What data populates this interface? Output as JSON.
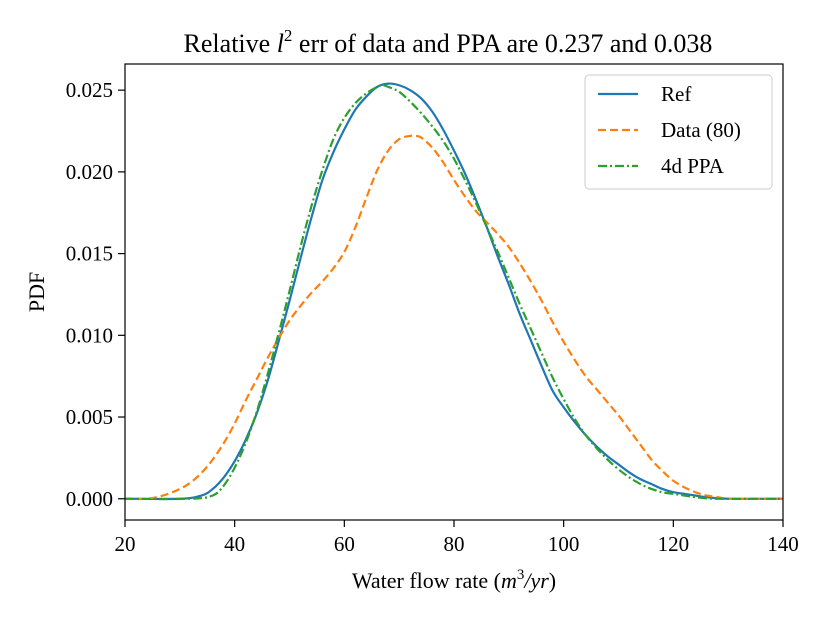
{
  "chart_data": {
    "type": "line",
    "title_prefix": "Relative ",
    "title_symbol": "l",
    "title_superscript": "2",
    "title_suffix": " err of data and PPA are 0.237 and 0.038",
    "xlabel_prefix": "Water flow rate (",
    "xlabel_m": "m",
    "xlabel_sup": "3",
    "xlabel_rest": "/yr",
    "xlabel_suffix": ")",
    "ylabel": "PDF",
    "xlim": [
      20,
      140
    ],
    "ylim": [
      -0.0013,
      0.0266
    ],
    "xticks": [
      20,
      40,
      60,
      80,
      100,
      120,
      140
    ],
    "xtick_labels": [
      "20",
      "40",
      "60",
      "80",
      "100",
      "120",
      "140"
    ],
    "yticks": [
      0.0,
      0.005,
      0.01,
      0.015,
      0.02,
      0.025
    ],
    "ytick_labels": [
      "0.000",
      "0.005",
      "0.010",
      "0.015",
      "0.020",
      "0.025"
    ],
    "legend_position": "top-right",
    "series": [
      {
        "name": "Ref",
        "color": "#1f77b4",
        "dash": "solid",
        "x": [
          20,
          30,
          34,
          36,
          38,
          40,
          42,
          44,
          46,
          48,
          50,
          52,
          54,
          56,
          58,
          60,
          62,
          64,
          66,
          68,
          70,
          72,
          74,
          76,
          78,
          80,
          82,
          84,
          86,
          88,
          90,
          92,
          94,
          96,
          98,
          100,
          102,
          104,
          106,
          108,
          110,
          112,
          114,
          116,
          118,
          120,
          122,
          124,
          126,
          130,
          140
        ],
        "y": [
          0.0,
          0.0,
          0.0002,
          0.0006,
          0.0013,
          0.0023,
          0.0036,
          0.0052,
          0.0072,
          0.0096,
          0.0121,
          0.0147,
          0.0172,
          0.0195,
          0.0212,
          0.0226,
          0.0238,
          0.0246,
          0.0252,
          0.0254,
          0.0253,
          0.025,
          0.0245,
          0.0237,
          0.0226,
          0.0213,
          0.0199,
          0.0183,
          0.0166,
          0.0148,
          0.0131,
          0.0113,
          0.0097,
          0.0081,
          0.0066,
          0.0056,
          0.0047,
          0.0039,
          0.0032,
          0.0026,
          0.0021,
          0.0016,
          0.0012,
          0.0009,
          0.0006,
          0.0004,
          0.0003,
          0.0002,
          0.0001,
          0.0,
          0.0
        ]
      },
      {
        "name": "Data (80)",
        "color": "#ff7f0e",
        "dash": "dashed",
        "x": [
          20,
          24,
          27,
          30,
          32,
          34,
          36,
          38,
          40,
          42,
          44,
          46,
          48,
          50,
          52,
          54,
          56,
          58,
          60,
          62,
          64,
          66,
          68,
          70,
          72,
          73,
          74,
          76,
          78,
          80,
          82,
          84,
          86,
          88,
          90,
          92,
          94,
          96,
          98,
          100,
          102,
          104,
          106,
          108,
          110,
          112,
          114,
          116,
          118,
          120,
          122,
          124,
          126,
          128,
          130,
          134,
          140
        ],
        "y": [
          0.0,
          0.0,
          0.0002,
          0.0006,
          0.001,
          0.0016,
          0.0024,
          0.0034,
          0.0046,
          0.006,
          0.0073,
          0.0086,
          0.0098,
          0.0109,
          0.0118,
          0.0126,
          0.0133,
          0.0141,
          0.0151,
          0.0166,
          0.0184,
          0.0201,
          0.0213,
          0.022,
          0.0222,
          0.0222,
          0.0221,
          0.0215,
          0.0206,
          0.0195,
          0.0185,
          0.0176,
          0.0169,
          0.0162,
          0.0154,
          0.0144,
          0.0133,
          0.0121,
          0.0108,
          0.0096,
          0.0085,
          0.0075,
          0.0067,
          0.0059,
          0.0051,
          0.0042,
          0.0033,
          0.0024,
          0.0017,
          0.0011,
          0.0007,
          0.0004,
          0.0002,
          0.0001,
          0.0,
          0.0,
          0.0
        ]
      },
      {
        "name": "4d PPA",
        "color": "#2ca02c",
        "dash": "dashdot",
        "x": [
          20,
          32,
          36,
          38,
          40,
          42,
          44,
          46,
          48,
          50,
          52,
          54,
          56,
          58,
          60,
          62,
          64,
          66,
          67,
          68,
          70,
          72,
          74,
          76,
          78,
          80,
          82,
          84,
          86,
          88,
          90,
          92,
          94,
          96,
          98,
          100,
          102,
          104,
          106,
          108,
          110,
          112,
          114,
          116,
          118,
          120,
          122,
          124,
          128,
          140
        ],
        "y": [
          0.0,
          0.0,
          0.0002,
          0.0008,
          0.0019,
          0.0034,
          0.0053,
          0.0076,
          0.0101,
          0.0127,
          0.0154,
          0.0179,
          0.0201,
          0.022,
          0.0233,
          0.0242,
          0.0248,
          0.0252,
          0.0253,
          0.0252,
          0.0249,
          0.0243,
          0.0236,
          0.0228,
          0.0219,
          0.0208,
          0.0195,
          0.0181,
          0.0166,
          0.0151,
          0.0135,
          0.0119,
          0.0104,
          0.0089,
          0.0074,
          0.0061,
          0.0049,
          0.0039,
          0.0031,
          0.0024,
          0.0018,
          0.0013,
          0.0009,
          0.0006,
          0.0004,
          0.0003,
          0.0002,
          0.0001,
          0.0,
          0.0
        ]
      }
    ]
  }
}
